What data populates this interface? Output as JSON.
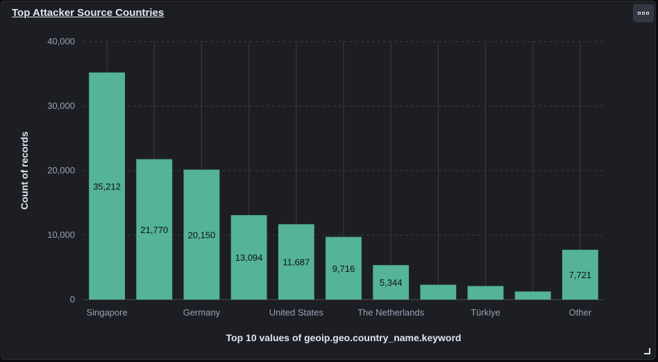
{
  "panel": {
    "title": "Top Attacker Source Countries",
    "menu_icon": "options-icon"
  },
  "colors": {
    "bar": "#54b399",
    "background": "#1d1e24",
    "grid": "#3a3d45"
  },
  "chart_data": {
    "type": "bar",
    "title": "Top Attacker Source Countries",
    "xlabel": "Top 10 values of geoip.geo.country_name.keyword",
    "ylabel": "Count of records",
    "ylim": [
      0,
      40000
    ],
    "yticks": [
      "0",
      "10,000",
      "20,000",
      "30,000",
      "40,000"
    ],
    "ytick_values": [
      0,
      10000,
      20000,
      30000,
      40000
    ],
    "categories": [
      "Singapore",
      "",
      "Germany",
      "",
      "United States",
      "",
      "The Netherlands",
      "",
      "Türkiye",
      "",
      "Other"
    ],
    "values": [
      35212,
      21770,
      20150,
      13094,
      11687,
      9716,
      5344,
      2300,
      2100,
      1250,
      7721
    ],
    "data_labels": [
      "35,212",
      "21,770",
      "20,150",
      "13,094",
      "11,687",
      "9,716",
      "5,344",
      "",
      "",
      "",
      "7,721"
    ],
    "grid": true,
    "legend": "none"
  }
}
